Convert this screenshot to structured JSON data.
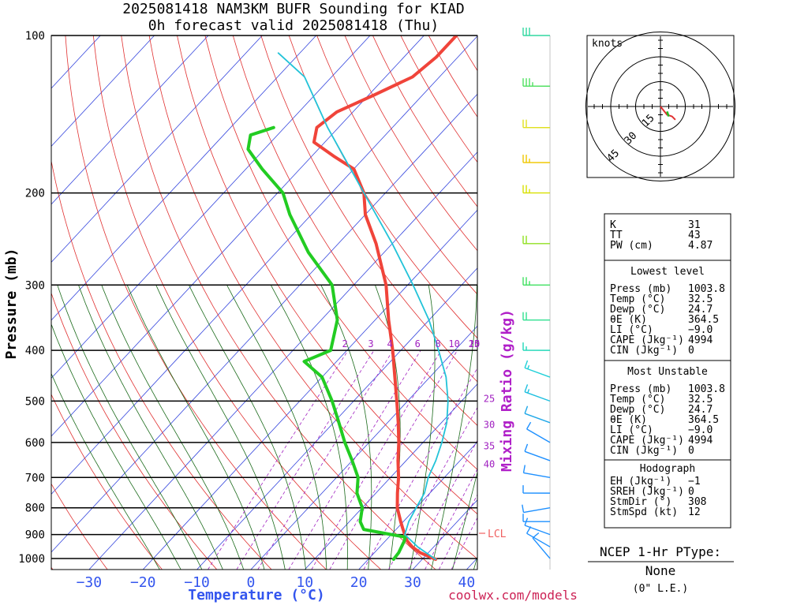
{
  "title": {
    "line1": "2025081418 NAM3KM BUFR Sounding for KIAD",
    "line2": "0h forecast valid 2025081418 (Thu)"
  },
  "axes": {
    "ylabel": "Pressure (mb)",
    "xlabel": "Temperature (°C)",
    "mixing_label": "Mixing Ratio (g/kg)"
  },
  "footer": {
    "site": "coolwx.com/models"
  },
  "hodograph": {
    "units_label": "knots",
    "ring_labels": [
      "15",
      "30",
      "45"
    ]
  },
  "indices": {
    "rows_top": [
      {
        "label": "K",
        "value": "31"
      },
      {
        "label": "TT",
        "value": "43"
      },
      {
        "label": "PW (cm)",
        "value": "4.87"
      }
    ],
    "lowest_title": "Lowest level",
    "lowest": [
      {
        "label": "Press (mb)",
        "value": "1003.8"
      },
      {
        "label": "Temp (°C)",
        "value": "32.5"
      },
      {
        "label": "Dewp (°C)",
        "value": "24.7"
      },
      {
        "label": "θE (K)",
        "value": "364.5"
      },
      {
        "label": "LI (°C)",
        "value": "−9.0"
      },
      {
        "label": "CAPE (Jkg⁻¹)",
        "value": "4994"
      },
      {
        "label": "CIN (Jkg⁻¹)",
        "value": "0"
      }
    ],
    "mu_title": "Most Unstable",
    "mu": [
      {
        "label": "Press (mb)",
        "value": "1003.8"
      },
      {
        "label": "Temp (°C)",
        "value": "32.5"
      },
      {
        "label": "Dewp (°C)",
        "value": "24.7"
      },
      {
        "label": "θE (K)",
        "value": "364.5"
      },
      {
        "label": "LI (°C)",
        "value": "−9.0"
      },
      {
        "label": "CAPE (Jkg⁻¹)",
        "value": "4994"
      },
      {
        "label": "CIN (Jkg⁻¹)",
        "value": "0"
      }
    ],
    "hodo_title": "Hodograph",
    "hodo": [
      {
        "label": "EH (Jkg⁻¹)",
        "value": "−1"
      },
      {
        "label": "SREH (Jkg⁻¹)",
        "value": "0"
      },
      {
        "label": "StmDir (°)",
        "value": "308"
      },
      {
        "label": "StmSpd (kt)",
        "value": "12"
      }
    ]
  },
  "ptype": {
    "title": "NCEP 1-Hr PType:",
    "value": "None",
    "note": "(0\" L.E.)"
  },
  "chart_data": {
    "type": "line",
    "pressure_ticks": [
      100,
      200,
      300,
      400,
      500,
      600,
      700,
      800,
      900,
      1000
    ],
    "pressure_range": [
      100,
      1050
    ],
    "temp_ticks": [
      -30,
      -20,
      -10,
      0,
      10,
      20,
      30,
      40
    ],
    "temp_range_at_1050": [
      -37,
      42
    ],
    "lcl_label": "LCL",
    "lcl_pressure": 895,
    "mixing_ratio_labels": [
      "2",
      "3",
      "4",
      "6",
      "8",
      "10",
      "15",
      "20",
      "25",
      "30",
      "35",
      "40"
    ],
    "series": [
      {
        "name": "Temperature",
        "color": "#f0443a",
        "points": [
          [
            1003.8,
            32.5
          ],
          [
            975,
            28.5
          ],
          [
            950,
            26
          ],
          [
            925,
            24
          ],
          [
            900,
            22.5
          ],
          [
            875,
            21
          ],
          [
            850,
            19.5
          ],
          [
            800,
            16.5
          ],
          [
            750,
            14
          ],
          [
            700,
            11.5
          ],
          [
            650,
            8.5
          ],
          [
            600,
            5.5
          ],
          [
            550,
            2
          ],
          [
            500,
            -2
          ],
          [
            450,
            -6.5
          ],
          [
            400,
            -11.5
          ],
          [
            350,
            -17.5
          ],
          [
            300,
            -24
          ],
          [
            250,
            -33
          ],
          [
            220,
            -40
          ],
          [
            200,
            -44
          ],
          [
            180,
            -50
          ],
          [
            170,
            -56
          ],
          [
            160,
            -62
          ],
          [
            150,
            -64
          ],
          [
            140,
            -63
          ],
          [
            130,
            -59
          ],
          [
            120,
            -55
          ],
          [
            110,
            -54
          ],
          [
            100,
            -54
          ]
        ]
      },
      {
        "name": "Dewpoint",
        "color": "#22cc22",
        "points": [
          [
            1003.8,
            24.7
          ],
          [
            975,
            24.5
          ],
          [
            950,
            24
          ],
          [
            925,
            23.5
          ],
          [
            910,
            23
          ],
          [
            900,
            20
          ],
          [
            880,
            14
          ],
          [
            850,
            12
          ],
          [
            800,
            10
          ],
          [
            750,
            6.5
          ],
          [
            700,
            4
          ],
          [
            650,
            0
          ],
          [
            600,
            -4.5
          ],
          [
            550,
            -9
          ],
          [
            500,
            -14
          ],
          [
            450,
            -20
          ],
          [
            420,
            -26
          ],
          [
            400,
            -23
          ],
          [
            350,
            -27
          ],
          [
            300,
            -34
          ],
          [
            260,
            -44
          ],
          [
            220,
            -54
          ],
          [
            200,
            -59
          ],
          [
            180,
            -67
          ],
          [
            165,
            -73
          ],
          [
            155,
            -75
          ],
          [
            150,
            -72
          ]
        ]
      },
      {
        "name": "Parcel",
        "color": "#22c3d8",
        "points": [
          [
            1003.8,
            32.5
          ],
          [
            950,
            27
          ],
          [
            900,
            22.5
          ],
          [
            850,
            21
          ],
          [
            800,
            20
          ],
          [
            750,
            19
          ],
          [
            700,
            17
          ],
          [
            650,
            15.5
          ],
          [
            600,
            13.5
          ],
          [
            550,
            11
          ],
          [
            500,
            7.5
          ],
          [
            450,
            3
          ],
          [
            400,
            -3
          ],
          [
            350,
            -10
          ],
          [
            300,
            -19
          ],
          [
            250,
            -30
          ],
          [
            200,
            -44
          ],
          [
            150,
            -62
          ],
          [
            120,
            -75
          ],
          [
            108,
            -84
          ]
        ]
      }
    ],
    "wind_barbs": [
      {
        "pressure": 1000,
        "dir": 320,
        "spd": 10,
        "color": "#1e90ff"
      },
      {
        "pressure": 950,
        "dir": 300,
        "spd": 10,
        "color": "#1e90ff"
      },
      {
        "pressure": 900,
        "dir": 290,
        "spd": 10,
        "color": "#1e90ff"
      },
      {
        "pressure": 850,
        "dir": 270,
        "spd": 10,
        "color": "#1e90ff"
      },
      {
        "pressure": 800,
        "dir": 260,
        "spd": 10,
        "color": "#1e90ff"
      },
      {
        "pressure": 750,
        "dir": 270,
        "spd": 10,
        "color": "#1e90ff"
      },
      {
        "pressure": 700,
        "dir": 280,
        "spd": 10,
        "color": "#1e90ff"
      },
      {
        "pressure": 650,
        "dir": 290,
        "spd": 10,
        "color": "#1e90ff"
      },
      {
        "pressure": 600,
        "dir": 300,
        "spd": 10,
        "color": "#1e90ff"
      },
      {
        "pressure": 550,
        "dir": 290,
        "spd": 10,
        "color": "#20a8e8"
      },
      {
        "pressure": 500,
        "dir": 290,
        "spd": 15,
        "color": "#20c0e0"
      },
      {
        "pressure": 450,
        "dir": 290,
        "spd": 15,
        "color": "#20d0d8"
      },
      {
        "pressure": 400,
        "dir": 270,
        "spd": 15,
        "color": "#20d8b8"
      },
      {
        "pressure": 350,
        "dir": 270,
        "spd": 20,
        "color": "#30e090"
      },
      {
        "pressure": 300,
        "dir": 270,
        "spd": 25,
        "color": "#40e060"
      },
      {
        "pressure": 250,
        "dir": 270,
        "spd": 20,
        "color": "#90e020"
      },
      {
        "pressure": 200,
        "dir": 270,
        "spd": 25,
        "color": "#d8e000"
      },
      {
        "pressure": 175,
        "dir": 270,
        "spd": 25,
        "color": "#f0c800"
      },
      {
        "pressure": 150,
        "dir": 270,
        "spd": 20,
        "color": "#e0e020"
      },
      {
        "pressure": 125,
        "dir": 270,
        "spd": 35,
        "color": "#50e060"
      },
      {
        "pressure": 100,
        "dir": 270,
        "spd": 30,
        "color": "#30d8a0"
      }
    ],
    "hodograph_points": [
      [
        0,
        0
      ],
      [
        4,
        -5
      ],
      [
        7,
        -6
      ],
      [
        9,
        -8
      ]
    ]
  }
}
